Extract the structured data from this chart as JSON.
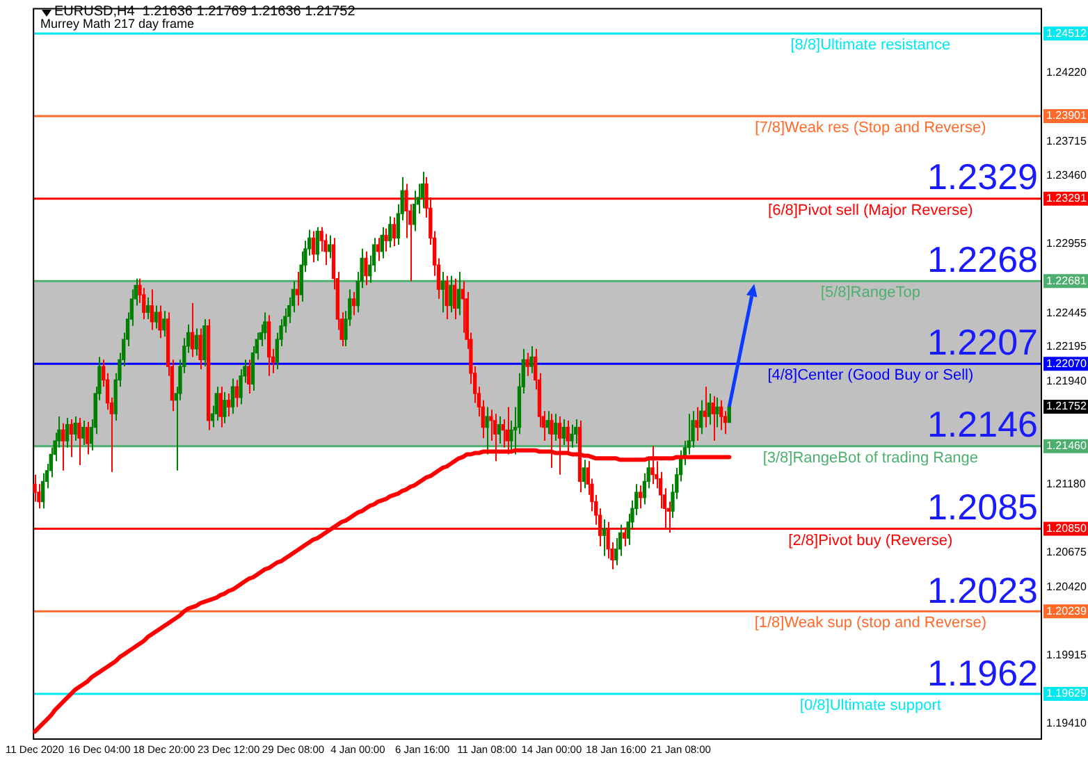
{
  "chart_data": {
    "type": "candlestick",
    "title": "EURUSD,H4  1.21636 1.21769 1.21636 1.21752",
    "subtitle": "Murrey Math 217 day frame",
    "categories": [
      "11 Dec 2020",
      null,
      null,
      null,
      null,
      null,
      null,
      null,
      null,
      null,
      null,
      null,
      null,
      null,
      null,
      null,
      "16 Dec 04:00",
      null,
      null,
      null,
      null,
      null,
      null,
      null,
      null,
      null,
      null,
      null,
      null,
      null,
      null,
      null,
      "18 Dec 20:00",
      null,
      null,
      null,
      null,
      null,
      null,
      null,
      null,
      null,
      null,
      null,
      null,
      null,
      null,
      null,
      "23 Dec 12:00",
      null,
      null,
      null,
      null,
      null,
      null,
      null,
      null,
      null,
      null,
      null,
      null,
      null,
      null,
      null,
      "29 Dec 08:00",
      null,
      null,
      null,
      null,
      null,
      null,
      null,
      null,
      null,
      null,
      null,
      null,
      null,
      null,
      null,
      "4 Jan 00:00",
      null,
      null,
      null,
      null,
      null,
      null,
      null,
      null,
      null,
      null,
      null,
      null,
      null,
      null,
      null,
      "6 Jan 16:00",
      null,
      null,
      null,
      null,
      null,
      null,
      null,
      null,
      null,
      null,
      null,
      null,
      null,
      null,
      null,
      "11 Jan 08:00",
      null,
      null,
      null,
      null,
      null,
      null,
      null,
      null,
      null,
      null,
      null,
      null,
      null,
      null,
      null,
      "14 Jan 00:00",
      null,
      null,
      null,
      null,
      null,
      null,
      null,
      null,
      null,
      null,
      null,
      null,
      null,
      null,
      null,
      "18 Jan 16:00",
      null,
      null,
      null,
      null,
      null,
      null,
      null,
      null,
      null,
      null,
      null,
      null,
      null,
      null,
      null,
      "21 Jan 08:00",
      null,
      null,
      null,
      null,
      null,
      null,
      null,
      null,
      null,
      null,
      null,
      null,
      null,
      null,
      null,
      null,
      null,
      null,
      null,
      null,
      null,
      null,
      null,
      null,
      null,
      null,
      null,
      null,
      null,
      null,
      null,
      null,
      null,
      null,
      null,
      null,
      null,
      null,
      null,
      null,
      null,
      null,
      null,
      null,
      null,
      null,
      null,
      null,
      null,
      null,
      null,
      null,
      null,
      null,
      null,
      null,
      null,
      null,
      null,
      null,
      null,
      null,
      null,
      null,
      null,
      null,
      null,
      null,
      null,
      null,
      null,
      null,
      null,
      null,
      null,
      null,
      null,
      null,
      null,
      null,
      null,
      null,
      null,
      null,
      null,
      null,
      null,
      null,
      null
    ],
    "ohlc": [
      [
        1.2118,
        1.2125,
        1.2105,
        1.2112
      ],
      [
        1.2112,
        1.2118,
        1.21,
        1.2105
      ],
      [
        1.2105,
        1.2126,
        1.21,
        1.212
      ],
      [
        1.212,
        1.2133,
        1.2115,
        1.2128
      ],
      [
        1.2128,
        1.2145,
        1.2123,
        1.214
      ],
      [
        1.214,
        1.2156,
        1.2135,
        1.215
      ],
      [
        1.215,
        1.2168,
        1.2145,
        1.2158
      ],
      [
        1.2158,
        1.2163,
        1.2128,
        1.215
      ],
      [
        1.215,
        1.2167,
        1.2145,
        1.2162
      ],
      [
        1.2162,
        1.2166,
        1.2138,
        1.2155
      ],
      [
        1.2155,
        1.2168,
        1.215,
        1.2163
      ],
      [
        1.2163,
        1.2167,
        1.2132,
        1.2152
      ],
      [
        1.2152,
        1.2165,
        1.2147,
        1.216
      ],
      [
        1.216,
        1.2164,
        1.214,
        1.2148
      ],
      [
        1.2148,
        1.2166,
        1.2143,
        1.216
      ],
      [
        1.216,
        1.219,
        1.2155,
        1.2185
      ],
      [
        1.2185,
        1.2212,
        1.218,
        1.2205
      ],
      [
        1.2205,
        1.221,
        1.219,
        1.2195
      ],
      [
        1.2195,
        1.22,
        1.2173,
        1.2178
      ],
      [
        1.2178,
        1.2182,
        1.2127,
        1.217
      ],
      [
        1.217,
        1.22,
        1.2165,
        1.2195
      ],
      [
        1.2195,
        1.2215,
        1.219,
        1.221
      ],
      [
        1.221,
        1.223,
        1.2205,
        1.2225
      ],
      [
        1.2225,
        1.2245,
        1.222,
        1.224
      ],
      [
        1.224,
        1.2262,
        1.2235,
        1.2255
      ],
      [
        1.2255,
        1.227,
        1.225,
        1.2265
      ],
      [
        1.2265,
        1.227,
        1.2252,
        1.2258
      ],
      [
        1.2258,
        1.2263,
        1.224,
        1.2245
      ],
      [
        1.2245,
        1.2256,
        1.224,
        1.225
      ],
      [
        1.225,
        1.2262,
        1.2232,
        1.2238
      ],
      [
        1.2238,
        1.225,
        1.2233,
        1.2245
      ],
      [
        1.2245,
        1.225,
        1.2226,
        1.2232
      ],
      [
        1.2232,
        1.2246,
        1.2227,
        1.224
      ],
      [
        1.224,
        1.2245,
        1.2198,
        1.2205
      ],
      [
        1.2205,
        1.221,
        1.2172,
        1.218
      ],
      [
        1.218,
        1.219,
        1.2128,
        1.2185
      ],
      [
        1.2185,
        1.221,
        1.218,
        1.2205
      ],
      [
        1.2205,
        1.2226,
        1.22,
        1.222
      ],
      [
        1.222,
        1.2236,
        1.2215,
        1.223
      ],
      [
        1.223,
        1.2252,
        1.2212,
        1.2218
      ],
      [
        1.2218,
        1.2233,
        1.2213,
        1.2228
      ],
      [
        1.2228,
        1.2233,
        1.2203,
        1.221
      ],
      [
        1.221,
        1.224,
        1.2205,
        1.2235
      ],
      [
        1.2235,
        1.224,
        1.2158,
        1.2165
      ],
      [
        1.2165,
        1.2176,
        1.216,
        1.217
      ],
      [
        1.217,
        1.219,
        1.2165,
        1.2185
      ],
      [
        1.2185,
        1.219,
        1.216,
        1.2168
      ],
      [
        1.2168,
        1.2186,
        1.2163,
        1.218
      ],
      [
        1.218,
        1.2185,
        1.2168,
        1.2175
      ],
      [
        1.2175,
        1.2196,
        1.217,
        1.219
      ],
      [
        1.219,
        1.2195,
        1.2175,
        1.2182
      ],
      [
        1.2182,
        1.2203,
        1.2177,
        1.2198
      ],
      [
        1.2198,
        1.221,
        1.2193,
        1.2205
      ],
      [
        1.2205,
        1.221,
        1.2185,
        1.2192
      ],
      [
        1.2192,
        1.222,
        1.2187,
        1.2215
      ],
      [
        1.2215,
        1.223,
        1.221,
        1.2225
      ],
      [
        1.2225,
        1.2236,
        1.222,
        1.223
      ],
      [
        1.223,
        1.2245,
        1.2225,
        1.2238
      ],
      [
        1.2238,
        1.2243,
        1.2198,
        1.2212
      ],
      [
        1.2212,
        1.2218,
        1.22,
        1.2208
      ],
      [
        1.2208,
        1.223,
        1.2203,
        1.2225
      ],
      [
        1.2225,
        1.224,
        1.222,
        1.2235
      ],
      [
        1.2235,
        1.2248,
        1.223,
        1.2242
      ],
      [
        1.2242,
        1.2256,
        1.2237,
        1.225
      ],
      [
        1.225,
        1.2268,
        1.2245,
        1.2262
      ],
      [
        1.2262,
        1.2275,
        1.225,
        1.2258
      ],
      [
        1.2258,
        1.229,
        1.2253,
        1.228
      ],
      [
        1.228,
        1.2298,
        1.2275,
        1.2292
      ],
      [
        1.2292,
        1.2306,
        1.2287,
        1.23
      ],
      [
        1.23,
        1.2305,
        1.2282,
        1.2288
      ],
      [
        1.2288,
        1.2308,
        1.2283,
        1.2305
      ],
      [
        1.2305,
        1.2308,
        1.229,
        1.2298
      ],
      [
        1.2298,
        1.2303,
        1.228,
        1.229
      ],
      [
        1.229,
        1.2302,
        1.2285,
        1.2295
      ],
      [
        1.2295,
        1.23,
        1.2262,
        1.227
      ],
      [
        1.227,
        1.2275,
        1.2232,
        1.224
      ],
      [
        1.224,
        1.2245,
        1.222,
        1.2225
      ],
      [
        1.2225,
        1.2246,
        1.222,
        1.224
      ],
      [
        1.224,
        1.2262,
        1.2235,
        1.2255
      ],
      [
        1.2255,
        1.226,
        1.2243,
        1.225
      ],
      [
        1.225,
        1.2275,
        1.2245,
        1.2268
      ],
      [
        1.2268,
        1.2292,
        1.2263,
        1.2285
      ],
      [
        1.2285,
        1.229,
        1.2265,
        1.2272
      ],
      [
        1.2272,
        1.2287,
        1.2267,
        1.228
      ],
      [
        1.228,
        1.23,
        1.2275,
        1.2295
      ],
      [
        1.2295,
        1.23,
        1.2283,
        1.229
      ],
      [
        1.229,
        1.2308,
        1.2285,
        1.2302
      ],
      [
        1.2302,
        1.2307,
        1.229,
        1.2298
      ],
      [
        1.2298,
        1.2316,
        1.2293,
        1.231
      ],
      [
        1.231,
        1.2315,
        1.2294,
        1.23
      ],
      [
        1.23,
        1.2325,
        1.2295,
        1.2318
      ],
      [
        1.2318,
        1.2345,
        1.2313,
        1.2335
      ],
      [
        1.2335,
        1.234,
        1.23,
        1.232
      ],
      [
        1.232,
        1.2325,
        1.2268,
        1.231
      ],
      [
        1.231,
        1.2335,
        1.2305,
        1.2325
      ],
      [
        1.2325,
        1.234,
        1.2318,
        1.233
      ],
      [
        1.233,
        1.2349,
        1.2322,
        1.234
      ],
      [
        1.234,
        1.2345,
        1.2315,
        1.2322
      ],
      [
        1.2322,
        1.233,
        1.2295,
        1.23
      ],
      [
        1.23,
        1.2305,
        1.2272,
        1.228
      ],
      [
        1.228,
        1.2285,
        1.2255,
        1.2262
      ],
      [
        1.2262,
        1.2275,
        1.2245,
        1.2268
      ],
      [
        1.2268,
        1.2272,
        1.224,
        1.225
      ],
      [
        1.225,
        1.2272,
        1.2245,
        1.2265
      ],
      [
        1.2265,
        1.227,
        1.224,
        1.2248
      ],
      [
        1.2248,
        1.2275,
        1.2243,
        1.2262
      ],
      [
        1.2262,
        1.2268,
        1.223,
        1.2255
      ],
      [
        1.2255,
        1.226,
        1.2218,
        1.2225
      ],
      [
        1.2225,
        1.223,
        1.2192,
        1.22
      ],
      [
        1.22,
        1.2205,
        1.2178,
        1.2185
      ],
      [
        1.2185,
        1.219,
        1.2168,
        1.2175
      ],
      [
        1.2175,
        1.218,
        1.2152,
        1.216
      ],
      [
        1.216,
        1.2175,
        1.214,
        1.2168
      ],
      [
        1.2168,
        1.2173,
        1.215,
        1.2165
      ],
      [
        1.2165,
        1.217,
        1.2135,
        1.2155
      ],
      [
        1.2155,
        1.2168,
        1.2148,
        1.2162
      ],
      [
        1.2162,
        1.2166,
        1.2145,
        1.2158
      ],
      [
        1.2158,
        1.2175,
        1.214,
        1.215
      ],
      [
        1.215,
        1.2165,
        1.2143,
        1.2158
      ],
      [
        1.2158,
        1.2175,
        1.214,
        1.216
      ],
      [
        1.216,
        1.22,
        1.2155,
        1.219
      ],
      [
        1.219,
        1.2218,
        1.2185,
        1.221
      ],
      [
        1.221,
        1.2215,
        1.2198,
        1.2205
      ],
      [
        1.2205,
        1.222,
        1.22,
        1.2212
      ],
      [
        1.2212,
        1.2218,
        1.2188,
        1.2195
      ],
      [
        1.2195,
        1.22,
        1.216,
        1.2168
      ],
      [
        1.2168,
        1.2172,
        1.215,
        1.216
      ],
      [
        1.216,
        1.2172,
        1.2155,
        1.2165
      ],
      [
        1.2165,
        1.217,
        1.213,
        1.2155
      ],
      [
        1.2155,
        1.217,
        1.215,
        1.2163
      ],
      [
        1.2163,
        1.2168,
        1.2125,
        1.2152
      ],
      [
        1.2152,
        1.2166,
        1.2147,
        1.216
      ],
      [
        1.216,
        1.2165,
        1.214,
        1.215
      ],
      [
        1.215,
        1.2162,
        1.2145,
        1.2155
      ],
      [
        1.2155,
        1.2166,
        1.2148,
        1.216
      ],
      [
        1.216,
        1.2165,
        1.2112,
        1.212
      ],
      [
        1.212,
        1.2136,
        1.2115,
        1.213
      ],
      [
        1.213,
        1.2135,
        1.211,
        1.2118
      ],
      [
        1.2118,
        1.2122,
        1.2098,
        1.2105
      ],
      [
        1.2105,
        1.211,
        1.2088,
        1.2095
      ],
      [
        1.2095,
        1.21,
        1.2072,
        1.208
      ],
      [
        1.208,
        1.2092,
        1.2065,
        1.2085
      ],
      [
        1.2085,
        1.209,
        1.2063,
        1.207
      ],
      [
        1.207,
        1.2075,
        1.2055,
        1.2062
      ],
      [
        1.2062,
        1.2078,
        1.2058,
        1.207
      ],
      [
        1.207,
        1.2088,
        1.2065,
        1.2082
      ],
      [
        1.2082,
        1.2086,
        1.2072,
        1.2078
      ],
      [
        1.2078,
        1.2096,
        1.2073,
        1.209
      ],
      [
        1.209,
        1.2106,
        1.2085,
        1.21
      ],
      [
        1.21,
        1.2118,
        1.2095,
        1.2112
      ],
      [
        1.2112,
        1.2117,
        1.21,
        1.2108
      ],
      [
        1.2108,
        1.2126,
        1.2103,
        1.212
      ],
      [
        1.212,
        1.2137,
        1.2115,
        1.213
      ],
      [
        1.213,
        1.2146,
        1.2118,
        1.2125
      ],
      [
        1.2125,
        1.2135,
        1.2115,
        1.2122
      ],
      [
        1.2122,
        1.2127,
        1.21,
        1.211
      ],
      [
        1.211,
        1.2115,
        1.2085,
        1.21
      ],
      [
        1.21,
        1.2105,
        1.2082,
        1.2098
      ],
      [
        1.2098,
        1.2118,
        1.2093,
        1.2112
      ],
      [
        1.2112,
        1.213,
        1.2107,
        1.2125
      ],
      [
        1.2125,
        1.2143,
        1.212,
        1.2138
      ],
      [
        1.2138,
        1.215,
        1.2132,
        1.2145
      ],
      [
        1.2145,
        1.217,
        1.214,
        1.215
      ],
      [
        1.215,
        1.2172,
        1.2145,
        1.2165
      ],
      [
        1.2165,
        1.2175,
        1.215,
        1.216
      ],
      [
        1.216,
        1.218,
        1.2155,
        1.2172
      ],
      [
        1.2172,
        1.219,
        1.216,
        1.2168
      ],
      [
        1.2168,
        1.2185,
        1.2162,
        1.2178
      ],
      [
        1.2178,
        1.2183,
        1.215,
        1.217
      ],
      [
        1.217,
        1.2182,
        1.216,
        1.2175
      ],
      [
        1.2175,
        1.218,
        1.2158,
        1.2168
      ],
      [
        1.2168,
        1.2172,
        1.2155,
        1.21636
      ],
      [
        1.21636,
        1.21769,
        1.21636,
        1.21752
      ],
      null,
      null,
      null,
      null,
      null,
      null,
      null,
      null,
      null,
      null,
      null,
      null,
      null,
      null,
      null,
      null,
      null,
      null,
      null,
      null,
      null,
      null,
      null,
      null,
      null,
      null,
      null,
      null,
      null,
      null,
      null,
      null,
      null,
      null,
      null,
      null,
      null,
      null,
      null,
      null,
      null,
      null,
      null,
      null,
      null,
      null,
      null,
      null,
      null,
      null,
      null,
      null,
      null,
      null,
      null,
      null,
      null,
      null,
      null,
      null,
      null,
      null,
      null,
      null,
      null,
      null,
      null,
      null,
      null,
      null,
      null,
      null,
      null,
      null,
      null,
      null,
      null
    ],
    "series": [
      {
        "type": "line",
        "color": "#ff0000",
        "values": [
          1.1935,
          1.1938,
          1.1941,
          1.1944,
          1.1947,
          1.1951,
          1.1954,
          1.1957,
          1.196,
          1.1963,
          1.1966,
          1.1968,
          1.197,
          1.1972,
          1.1975,
          1.1977,
          1.1979,
          1.1981,
          1.1983,
          1.1985,
          1.1987,
          1.199,
          1.1992,
          1.1994,
          1.1996,
          1.1998,
          1.2,
          1.2002,
          1.2005,
          1.2007,
          1.2009,
          1.2011,
          1.2013,
          1.2015,
          1.2017,
          1.2019,
          1.2021,
          1.2024,
          1.2026,
          1.2027,
          1.2028,
          1.203,
          1.2031,
          1.2032,
          1.2033,
          1.2034,
          1.2036,
          1.2037,
          1.2039,
          1.204,
          1.2042,
          1.2044,
          1.2046,
          1.2048,
          1.2049,
          1.2051,
          1.2053,
          1.2055,
          1.2056,
          1.2058,
          1.206,
          1.2061,
          1.2063,
          1.2065,
          1.2067,
          1.2069,
          1.2071,
          1.2073,
          1.2075,
          1.2077,
          1.2078,
          1.208,
          1.2082,
          1.2084,
          1.2086,
          1.2088,
          1.209,
          1.2091,
          1.2093,
          1.2095,
          1.2097,
          1.2098,
          1.21,
          1.2102,
          1.2103,
          1.2105,
          1.2106,
          1.2107,
          1.2109,
          1.211,
          1.2111,
          1.2113,
          1.2114,
          1.2116,
          1.2117,
          1.2119,
          1.2121,
          1.2123,
          1.2124,
          1.2126,
          1.2128,
          1.213,
          1.2131,
          1.2133,
          1.2135,
          1.2137,
          1.2138,
          1.214,
          1.214,
          1.2141,
          1.2141,
          1.2142,
          1.2142,
          1.2142,
          1.2142,
          1.2142,
          1.2142,
          1.2142,
          1.2142,
          1.2143,
          1.2143,
          1.2143,
          1.2143,
          1.2143,
          1.2143,
          1.2142,
          1.2142,
          1.2142,
          1.2142,
          1.2141,
          1.2141,
          1.2141,
          1.2141,
          1.214,
          1.214,
          1.214,
          1.2139,
          1.2139,
          1.2138,
          1.2137,
          1.2137,
          1.2137,
          1.2137,
          1.2137,
          1.2137,
          1.2136,
          1.2136,
          1.2136,
          1.2136,
          1.2136,
          1.2136,
          1.2136,
          1.2137,
          1.2137,
          1.2137,
          1.2137,
          1.2137,
          1.2137,
          1.2137,
          1.2138,
          1.2138,
          1.2138,
          1.2138,
          1.2138,
          1.2138,
          1.2138,
          1.2138,
          1.2138,
          1.2138,
          1.2138,
          1.2138,
          1.2138,
          1.2138,
          null,
          null,
          null,
          null,
          null,
          null,
          null,
          null,
          null,
          null,
          null,
          null,
          null,
          null,
          null,
          null,
          null,
          null,
          null,
          null,
          null,
          null,
          null,
          null,
          null,
          null,
          null,
          null,
          null,
          null,
          null,
          null,
          null,
          null,
          null,
          null,
          null,
          null,
          null,
          null,
          null,
          null,
          null,
          null,
          null,
          null,
          null,
          null,
          null,
          null,
          null,
          null,
          null,
          null,
          null,
          null,
          null,
          null,
          null,
          null,
          null,
          null,
          null,
          null,
          null,
          null,
          null,
          null,
          null,
          null,
          null,
          null,
          null,
          null,
          null,
          null,
          null
        ]
      }
    ],
    "ylim": [
      1.193,
      1.247
    ],
    "yticks": [
      {
        "value": 1.1941,
        "label": "1.19410"
      },
      1.19629,
      1.19915,
      1.20239,
      {
        "value": 1.2042,
        "label": "1.20420"
      },
      1.20675,
      {
        "value": 1.2085,
        "label": "1.20850"
      },
      {
        "value": 1.2118,
        "label": "1.21180"
      },
      {
        "value": 1.2146,
        "label": "1.21460"
      },
      1.21752,
      {
        "value": 1.2194,
        "label": "1.21940"
      },
      {
        "value": 1.2207,
        "label": "1.22070"
      },
      1.22195,
      1.22445,
      1.22681,
      1.22955,
      1.23291,
      {
        "value": 1.2346,
        "label": "1.23460"
      },
      1.23715,
      1.23901,
      {
        "value": 1.2422,
        "label": "1.24220"
      },
      1.24512
    ],
    "bands": [
      {
        "axis": "y",
        "from": 1.2146,
        "to": 1.22681,
        "color": "#c0c0c0"
      }
    ],
    "ref_lines": [
      {
        "axis": "y",
        "value": 1.24512,
        "label": "[8/8]Ultimate resistance",
        "color": "#00e8f0"
      },
      {
        "axis": "y",
        "value": 1.23901,
        "label": "[7/8]Weak res (Stop and Reverse)",
        "color": "#ff6a2a"
      },
      {
        "axis": "y",
        "value": 1.23291,
        "label": "[6/8]Pivot sell (Major Reverse)",
        "color": "#ff0000"
      },
      {
        "axis": "y",
        "value": 1.22681,
        "label": "[5/8]RangeTop",
        "color": "#4caf6e"
      },
      {
        "axis": "y",
        "value": 1.2207,
        "label": "[4/8]Center (Good Buy or Sell)",
        "color": "#0000ff"
      },
      {
        "axis": "y",
        "value": 1.2146,
        "label": "[3/8]RangeBot of trading Range",
        "color": "#4caf6e"
      },
      {
        "axis": "y",
        "value": 1.2085,
        "label": "[2/8]Pivot buy (Reverse)",
        "color": "#ff0000"
      },
      {
        "axis": "y",
        "value": 1.20239,
        "label": "[1/8]Weak sup (stop and Reverse)",
        "color": "#ff6a2a"
      },
      {
        "axis": "y",
        "value": 1.19629,
        "label": "[0/8]Ultimate support",
        "color": "#00e8f0"
      }
    ],
    "annotations": [
      {
        "text": "1.2329",
        "y": 1.2329
      },
      {
        "text": "1.2268",
        "y": 1.2268
      },
      {
        "text": "1.2207",
        "y": 1.2207
      },
      {
        "text": "1.2146",
        "y": 1.2146
      },
      {
        "text": "1.2085",
        "y": 1.2085
      },
      {
        "text": "1.2023",
        "y": 1.2023
      },
      {
        "text": "1.1962",
        "y": 1.1962
      }
    ]
  }
}
